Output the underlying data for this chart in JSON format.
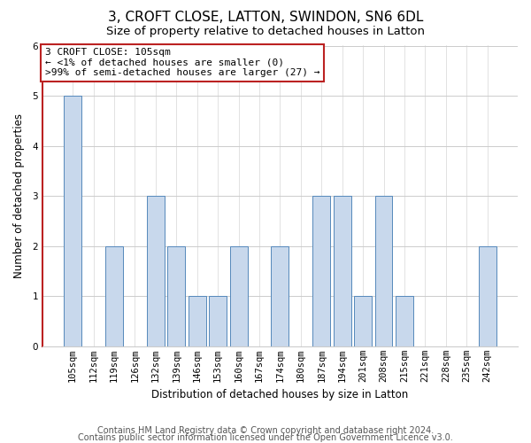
{
  "title_line1": "3, CROFT CLOSE, LATTON, SWINDON, SN6 6DL",
  "title_line2": "Size of property relative to detached houses in Latton",
  "xlabel": "Distribution of detached houses by size in Latton",
  "ylabel": "Number of detached properties",
  "footer_line1": "Contains HM Land Registry data © Crown copyright and database right 2024.",
  "footer_line2": "Contains public sector information licensed under the Open Government Licence v3.0.",
  "annotation_line1": "3 CROFT CLOSE: 105sqm",
  "annotation_line2": "← <1% of detached houses are smaller (0)",
  "annotation_line3": ">99% of semi-detached houses are larger (27) →",
  "categories": [
    "105sqm",
    "112sqm",
    "119sqm",
    "126sqm",
    "132sqm",
    "139sqm",
    "146sqm",
    "153sqm",
    "160sqm",
    "167sqm",
    "174sqm",
    "180sqm",
    "187sqm",
    "194sqm",
    "201sqm",
    "208sqm",
    "215sqm",
    "221sqm",
    "228sqm",
    "235sqm",
    "242sqm"
  ],
  "values": [
    5,
    0,
    2,
    0,
    3,
    2,
    1,
    1,
    2,
    0,
    2,
    0,
    3,
    3,
    1,
    3,
    1,
    0,
    0,
    0,
    2
  ],
  "bar_color": "#c8d8ec",
  "bar_edge_color": "#5588bb",
  "ylim": [
    0,
    6
  ],
  "yticks": [
    0,
    1,
    2,
    3,
    4,
    5,
    6
  ],
  "grid_color": "#cccccc",
  "background_color": "#ffffff",
  "annotation_box_color": "#ffffff",
  "annotation_box_edge": "#bb2222",
  "spine_color_left": "#bb2222",
  "spine_color_bottom": "#cccccc",
  "title1_fontsize": 11,
  "title2_fontsize": 9.5,
  "axis_label_fontsize": 8.5,
  "tick_fontsize": 7.5,
  "annotation_fontsize": 8,
  "footer_fontsize": 7
}
